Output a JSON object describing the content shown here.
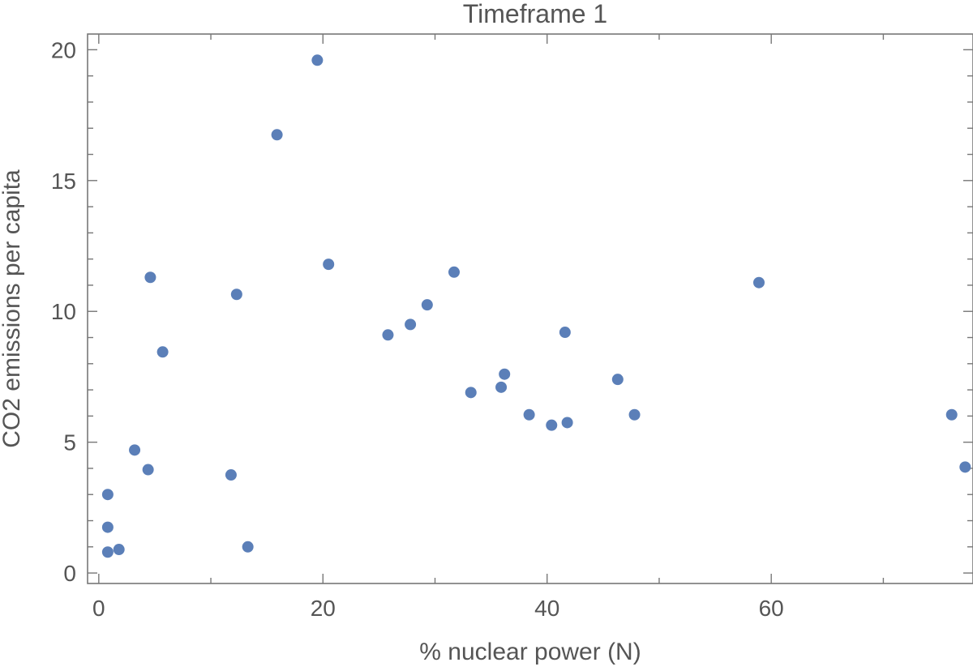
{
  "chart_data": {
    "type": "scatter",
    "title": "Timeframe 1",
    "xlabel": "% nuclear power (N)",
    "ylabel": "CO2 emissions per capita",
    "xlim": [
      -1,
      78
    ],
    "ylim": [
      -0.4,
      20.6
    ],
    "x_ticks": [
      0,
      20,
      40,
      60
    ],
    "x_minor_ticks": [
      10,
      30,
      50,
      70
    ],
    "y_ticks": [
      0,
      5,
      10,
      15,
      20
    ],
    "grid": false,
    "series": [
      {
        "color": "#5b7fb8",
        "points": [
          {
            "x": 0.8,
            "y": 3.0
          },
          {
            "x": 0.8,
            "y": 1.75
          },
          {
            "x": 0.8,
            "y": 0.8
          },
          {
            "x": 1.8,
            "y": 0.9
          },
          {
            "x": 3.2,
            "y": 4.7
          },
          {
            "x": 4.4,
            "y": 3.95
          },
          {
            "x": 4.6,
            "y": 11.3
          },
          {
            "x": 5.7,
            "y": 8.45
          },
          {
            "x": 11.8,
            "y": 3.75
          },
          {
            "x": 12.3,
            "y": 10.65
          },
          {
            "x": 13.3,
            "y": 1.0
          },
          {
            "x": 15.9,
            "y": 16.75
          },
          {
            "x": 19.5,
            "y": 19.6
          },
          {
            "x": 20.5,
            "y": 11.8
          },
          {
            "x": 25.8,
            "y": 9.1
          },
          {
            "x": 27.8,
            "y": 9.5
          },
          {
            "x": 29.3,
            "y": 10.25
          },
          {
            "x": 31.7,
            "y": 11.5
          },
          {
            "x": 33.2,
            "y": 6.9
          },
          {
            "x": 35.9,
            "y": 7.1
          },
          {
            "x": 36.2,
            "y": 7.6
          },
          {
            "x": 38.4,
            "y": 6.05
          },
          {
            "x": 40.4,
            "y": 5.65
          },
          {
            "x": 41.6,
            "y": 9.2
          },
          {
            "x": 41.8,
            "y": 5.75
          },
          {
            "x": 46.3,
            "y": 7.4
          },
          {
            "x": 47.8,
            "y": 6.05
          },
          {
            "x": 58.9,
            "y": 11.1
          },
          {
            "x": 76.1,
            "y": 6.05
          },
          {
            "x": 77.3,
            "y": 4.05
          }
        ]
      }
    ]
  }
}
